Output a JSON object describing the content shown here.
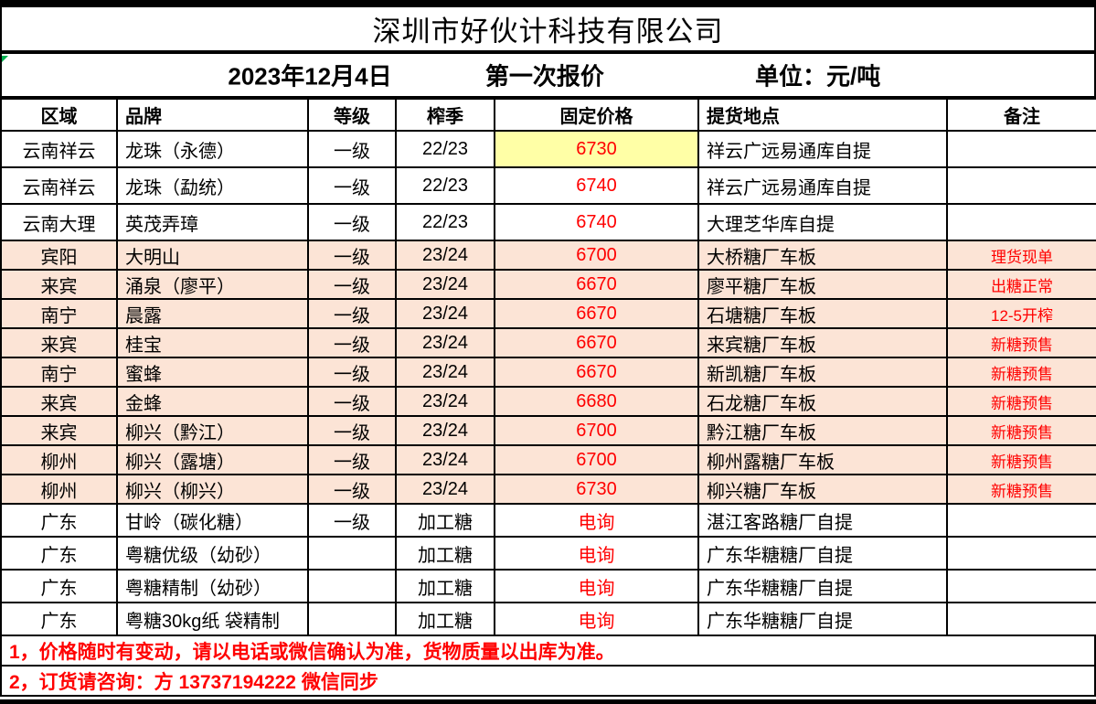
{
  "title": "深圳市好伙计科技有限公司",
  "subtitle": {
    "date": "2023年12月4日",
    "round": "第一次报价",
    "unit": "单位：元/吨"
  },
  "table": {
    "headers": [
      "区域",
      "品牌",
      "等级",
      "榨季",
      "固定价格",
      "提货地点",
      "备注"
    ],
    "rows": [
      {
        "region": "云南祥云",
        "brand": "龙珠（永德）",
        "grade": "一级",
        "season": "22/23",
        "price": "6730",
        "location": "祥云广远易通库自提",
        "note": "",
        "shaded": false,
        "price_highlight": true
      },
      {
        "region": "云南祥云",
        "brand": "龙珠（勐统）",
        "grade": "一级",
        "season": "22/23",
        "price": "6740",
        "location": "祥云广远易通库自提",
        "note": "",
        "shaded": false
      },
      {
        "region": "云南大理",
        "brand": "英茂弄璋",
        "grade": "一级",
        "season": "22/23",
        "price": "6740",
        "location": "大理芝华库自提",
        "note": "",
        "shaded": false
      },
      {
        "region": "宾阳",
        "brand": "大明山",
        "grade": "一级",
        "season": "23/24",
        "price": "6700",
        "location": "大桥糖厂车板",
        "note": "理货现单",
        "shaded": true
      },
      {
        "region": "来宾",
        "brand": "涌泉（廖平）",
        "grade": "一级",
        "season": "23/24",
        "price": "6670",
        "location": "廖平糖厂车板",
        "note": "出糖正常",
        "shaded": true
      },
      {
        "region": "南宁",
        "brand": "晨露",
        "grade": "一级",
        "season": "23/24",
        "price": "6670",
        "location": "石塘糖厂车板",
        "note": "12-5开榨",
        "shaded": true
      },
      {
        "region": "来宾",
        "brand": "桂宝",
        "grade": "一级",
        "season": "23/24",
        "price": "6670",
        "location": "来宾糖厂车板",
        "note": "新糖预售",
        "shaded": true
      },
      {
        "region": "南宁",
        "brand": "蜜蜂",
        "grade": "一级",
        "season": "23/24",
        "price": "6670",
        "location": "新凯糖厂车板",
        "note": "新糖预售",
        "shaded": true
      },
      {
        "region": "来宾",
        "brand": "金蜂",
        "grade": "一级",
        "season": "23/24",
        "price": "6680",
        "location": "石龙糖厂车板",
        "note": "新糖预售",
        "shaded": true
      },
      {
        "region": "来宾",
        "brand": "柳兴（黔江）",
        "grade": "一级",
        "season": "23/24",
        "price": "6700",
        "location": "黔江糖厂车板",
        "note": "新糖预售",
        "shaded": true
      },
      {
        "region": "柳州",
        "brand": "柳兴（露塘）",
        "grade": "一级",
        "season": "23/24",
        "price": "6700",
        "location": "柳州露糖厂车板",
        "note": "新糖预售",
        "shaded": true
      },
      {
        "region": "柳州",
        "brand": "柳兴（柳兴）",
        "grade": "一级",
        "season": "23/24",
        "price": "6730",
        "location": "柳兴糖厂车板",
        "note": "新糖预售",
        "shaded": true
      },
      {
        "region": "广东",
        "brand": "甘岭（碳化糖）",
        "grade": "一级",
        "season": "加工糖",
        "price": "电询",
        "location": "湛江客路糖厂自提",
        "note": "",
        "shaded": false
      },
      {
        "region": "广东",
        "brand": "粤糖优级（幼砂）",
        "grade": "",
        "season": "加工糖",
        "price": "电询",
        "location": "广东华糖糖厂自提",
        "note": "",
        "shaded": false
      },
      {
        "region": "广东",
        "brand": "粤糖精制（幼砂）",
        "grade": "",
        "season": "加工糖",
        "price": "电询",
        "location": "广东华糖糖厂自提",
        "note": "",
        "shaded": false
      },
      {
        "region": "广东",
        "brand": "粤糖30kg纸 袋精制",
        "grade": "",
        "season": "加工糖",
        "price": "电询",
        "location": "广东华糖糖厂自提",
        "note": "",
        "shaded": false
      }
    ]
  },
  "footnotes": [
    "1，价格随时有变动，请以电话或微信确认为准，货物质量以出库为准。",
    "2，订货请咨询：方  13737194222    微信同步"
  ],
  "colors": {
    "accent_red": "#FF0000",
    "row_shade": "#FCE4D6",
    "price_highlight": "#FFFFA6",
    "flag_green": "#00B050",
    "border_black": "#000000"
  }
}
